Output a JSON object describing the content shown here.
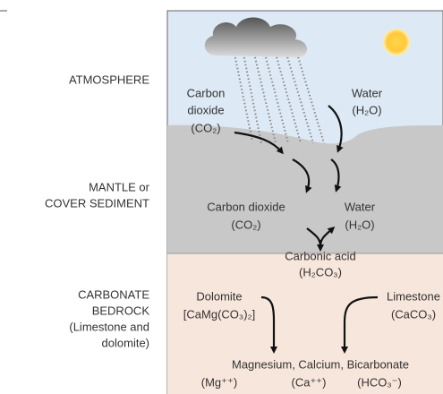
{
  "zones": {
    "atmosphere": [
      "ATMOSPHERE"
    ],
    "mantle": [
      "MANTLE or",
      "COVER SEDIMENT"
    ],
    "bedrock": [
      "CARBONATE",
      "BEDROCK",
      "(Limestone and",
      "dolomite)"
    ]
  },
  "nodes": [
    {
      "lines": [
        "Carbon",
        "dioxide",
        "(CO₂)"
      ]
    },
    {
      "lines": [
        "Water",
        "(H₂O)"
      ]
    },
    {
      "lines": [
        "Carbon dioxide",
        "(CO₂)"
      ]
    },
    {
      "lines": [
        "Water",
        "(H₂O)"
      ]
    },
    {
      "lines": [
        "Carbonic acid",
        "(H₂CO₃)"
      ]
    },
    {
      "lines": [
        "Dolomite",
        "[CaMg(CO₃)₂]"
      ]
    },
    {
      "lines": [
        "Limestone",
        "(CaCO₃)"
      ]
    },
    {
      "lines": [
        "Magnesium, Calcium, Bicarbonate"
      ]
    },
    {
      "lines": [
        "(Mg⁺⁺)"
      ]
    },
    {
      "lines": [
        "(Ca⁺⁺)"
      ]
    },
    {
      "lines": [
        "(HCO₃⁻)"
      ]
    }
  ]
}
